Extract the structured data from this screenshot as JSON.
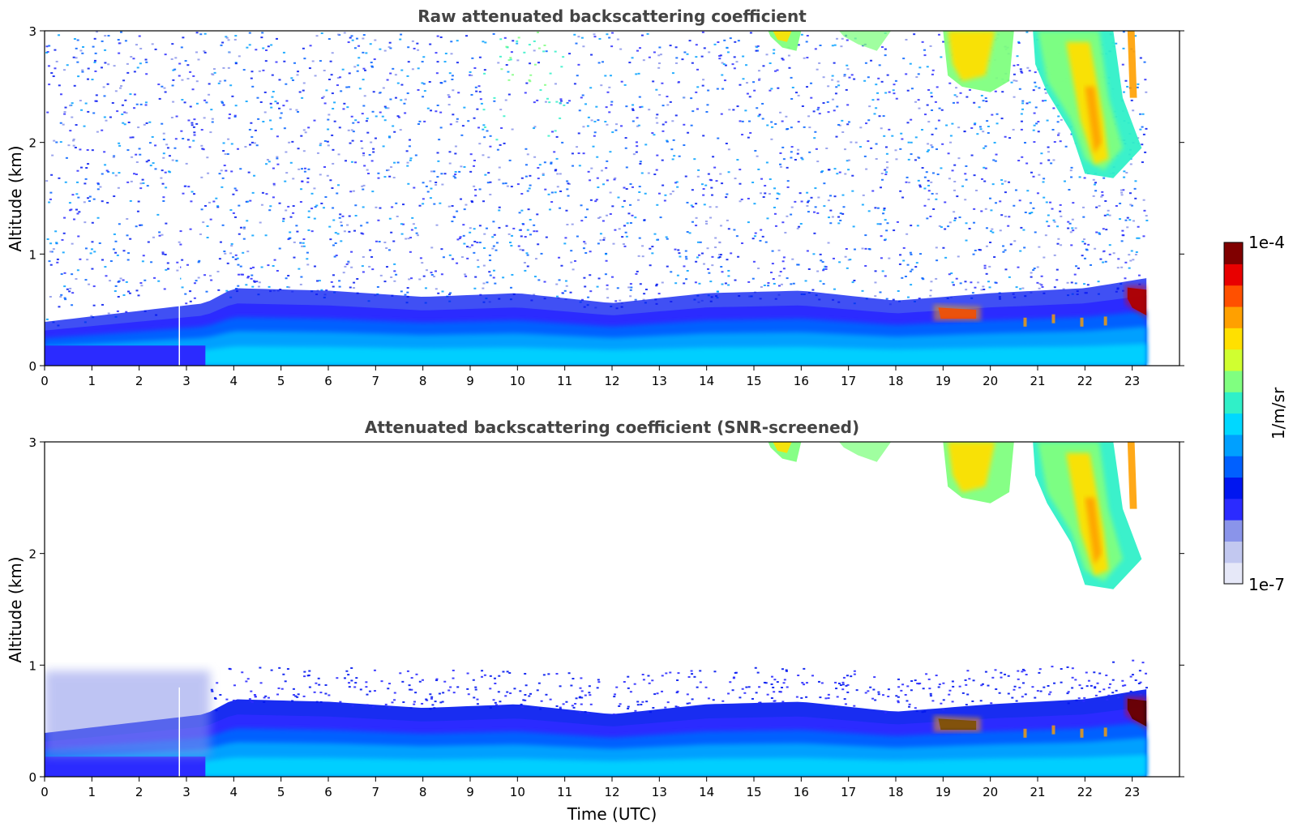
{
  "chart_data": [
    {
      "type": "heatmap",
      "title": "Raw attenuated backscattering coefficient",
      "xlabel": "",
      "ylabel": "Altitude (km)",
      "xlim": [
        0,
        24
      ],
      "ylim": [
        0,
        3
      ],
      "xticks": [
        "0",
        "1",
        "2",
        "3",
        "4",
        "5",
        "6",
        "7",
        "8",
        "9",
        "10",
        "11",
        "12",
        "13",
        "14",
        "15",
        "16",
        "17",
        "18",
        "19",
        "20",
        "21",
        "22",
        "23"
      ],
      "yticks": [
        "0",
        "1",
        "2",
        "3"
      ],
      "data_end_time": 23.3,
      "boundary_layer_top_km": [
        [
          0,
          0.35
        ],
        [
          3.4,
          0.5
        ],
        [
          4,
          0.62
        ],
        [
          6,
          0.6
        ],
        [
          8,
          0.55
        ],
        [
          10,
          0.58
        ],
        [
          12,
          0.5
        ],
        [
          14,
          0.58
        ],
        [
          16,
          0.6
        ],
        [
          18,
          0.52
        ],
        [
          20,
          0.58
        ],
        [
          22,
          0.62
        ],
        [
          23.3,
          0.7
        ]
      ],
      "features": [
        {
          "name": "noise field",
          "x": [
            0,
            23.3
          ],
          "y": [
            0.7,
            3.0
          ],
          "level": "low"
        },
        {
          "name": "boundary layer aerosol",
          "x": [
            0,
            23.3
          ],
          "y": [
            0,
            0.6
          ],
          "level": "medium"
        },
        {
          "name": "cloud layer near 19.5 UTC",
          "x": [
            18.9,
            19.7
          ],
          "y": [
            0.4,
            0.52
          ],
          "level": "high"
        },
        {
          "name": "cloud top at 23 UTC",
          "x": [
            22.9,
            23.3
          ],
          "y": [
            0.45,
            0.7
          ],
          "level": "very high"
        },
        {
          "name": "elevated layer",
          "x": [
            15.3,
            16
          ],
          "y": [
            2.85,
            3.0
          ],
          "level": "medium-high"
        },
        {
          "name": "elevated layer",
          "x": [
            19,
            20.5
          ],
          "y": [
            2.5,
            3.0
          ],
          "level": "high"
        },
        {
          "name": "elevated layer",
          "x": [
            21,
            23
          ],
          "y": [
            1.7,
            3.0
          ],
          "level": "high"
        }
      ]
    },
    {
      "type": "heatmap",
      "title": "Attenuated backscattering coefficient (SNR-screened)",
      "xlabel": "Time (UTC)",
      "ylabel": "Altitude (km)",
      "xlim": [
        0,
        24
      ],
      "ylim": [
        0,
        3
      ],
      "xticks": [
        "0",
        "1",
        "2",
        "3",
        "4",
        "5",
        "6",
        "7",
        "8",
        "9",
        "10",
        "11",
        "12",
        "13",
        "14",
        "15",
        "16",
        "17",
        "18",
        "19",
        "20",
        "21",
        "22",
        "23"
      ],
      "yticks": [
        "0",
        "1",
        "2",
        "3"
      ],
      "data_end_time": 23.3
    }
  ],
  "colorbar": {
    "label": "1/m/sr",
    "max_label": "1e-4",
    "min_label": "1e-7",
    "colormap": [
      "#e6e8f8",
      "#c2c8f0",
      "#8a94ea",
      "#2b2bff",
      "#0016f0",
      "#0060ff",
      "#00a0ff",
      "#00d8ff",
      "#30f0c8",
      "#80ff80",
      "#d0ff30",
      "#ffe000",
      "#ffa000",
      "#ff5000",
      "#e80000",
      "#800000"
    ]
  }
}
